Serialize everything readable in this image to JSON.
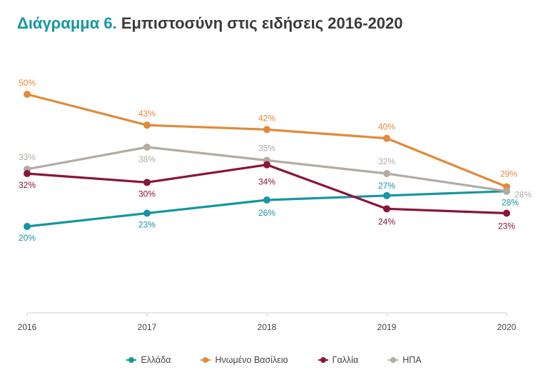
{
  "title": {
    "prefix": "Διάγραμμα 6.",
    "text": "Εμπιστοσύνη στις ειδήσεις 2016-2020"
  },
  "chart_data": {
    "type": "line",
    "x": [
      "2016",
      "2017",
      "2018",
      "2019",
      "2020"
    ],
    "ylim": [
      0,
      55
    ],
    "grid": false,
    "legend_position": "bottom",
    "series": [
      {
        "name": "Ελλάδα",
        "color": "#1696a0",
        "values": [
          20,
          23,
          26,
          27,
          28
        ],
        "labels": [
          "20%",
          "23%",
          "26%",
          "27%",
          "28%"
        ]
      },
      {
        "name": "Ηνωμένο Βασίλειο",
        "color": "#e08a3a",
        "values": [
          50,
          43,
          42,
          40,
          29
        ],
        "labels": [
          "50%",
          "43%",
          "42%",
          "40%",
          "29%"
        ]
      },
      {
        "name": "Γαλλία",
        "color": "#8a1538",
        "values": [
          32,
          30,
          34,
          24,
          23
        ],
        "labels": [
          "32%",
          "30%",
          "34%",
          "24%",
          "23%"
        ]
      },
      {
        "name": "ΗΠΑ",
        "color": "#b3aba4",
        "values": [
          33,
          38,
          35,
          32,
          28
        ],
        "labels": [
          "33%",
          "38%",
          "35%",
          "32%",
          "28%"
        ]
      }
    ]
  }
}
